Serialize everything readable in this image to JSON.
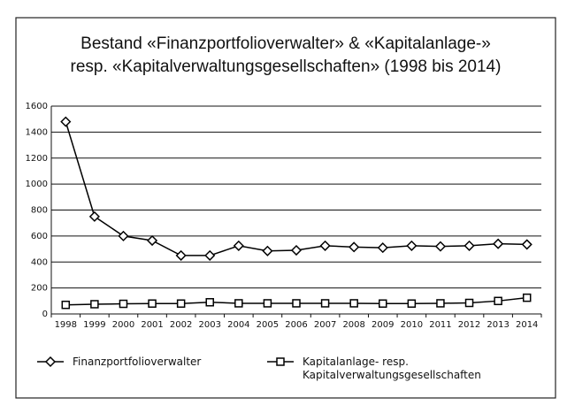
{
  "chart_data": {
    "type": "line",
    "title": [
      "Bestand «Finanzportfolioverwalter» & «Kapitalanlage-»",
      "resp. «Kapitalverwaltungsgesellschaften» (1998 bis 2014)"
    ],
    "categories": [
      "1998",
      "1999",
      "2000",
      "2001",
      "2002",
      "2003",
      "2004",
      "2005",
      "2006",
      "2007",
      "2008",
      "2009",
      "2010",
      "2011",
      "2012",
      "2013",
      "2014"
    ],
    "series": [
      {
        "name": "Finanzportfolioverwalter",
        "color": "#000000",
        "marker": "diamond",
        "values": [
          1480,
          750,
          600,
          565,
          450,
          450,
          525,
          485,
          490,
          525,
          515,
          510,
          525,
          520,
          525,
          540,
          535
        ]
      },
      {
        "name": "Kapitalanlage- resp. Kapitalverwaltungsgesellschaften",
        "color": "#000000",
        "marker": "square",
        "values": [
          70,
          75,
          78,
          80,
          80,
          90,
          82,
          82,
          82,
          82,
          82,
          80,
          80,
          82,
          85,
          100,
          125
        ]
      }
    ],
    "ylim": [
      0,
      1600
    ],
    "yticks": [
      0,
      200,
      400,
      600,
      800,
      1000,
      1200,
      1400,
      1600
    ],
    "grid": true
  }
}
